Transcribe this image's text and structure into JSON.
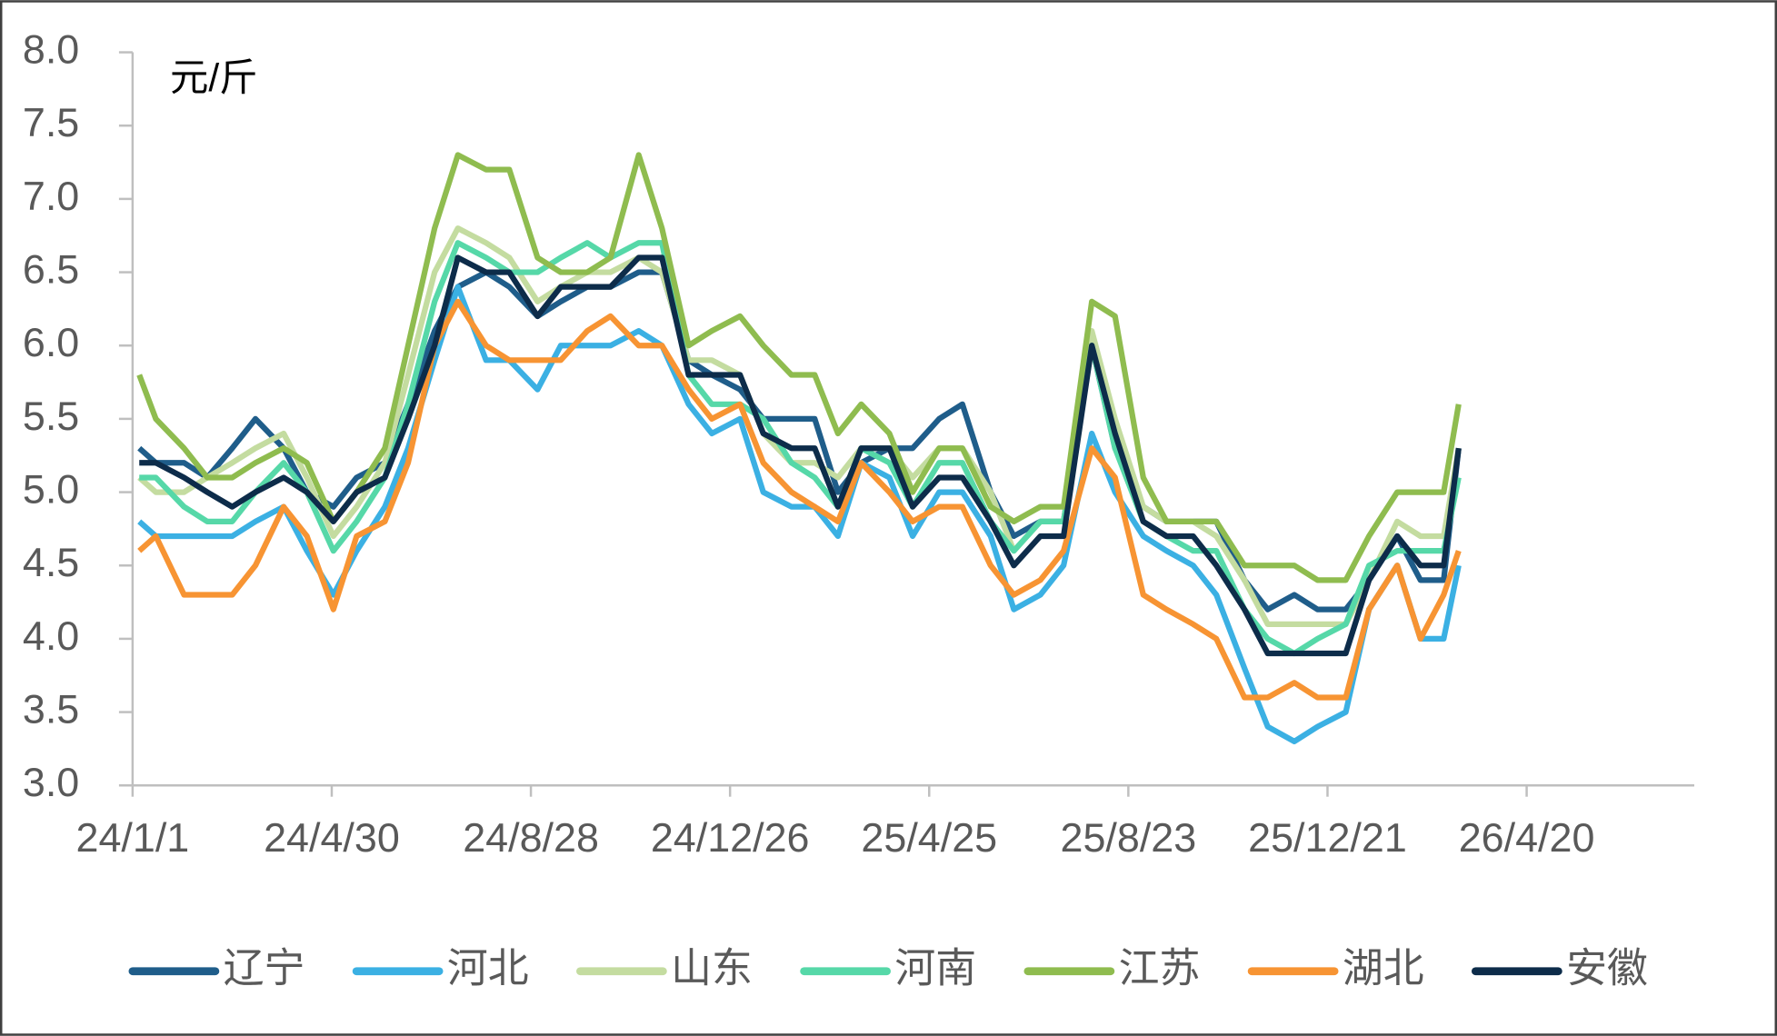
{
  "chart_data": {
    "type": "line",
    "y_unit": "元/斤",
    "x": [
      "24/1/5",
      "24/1/15",
      "24/2/1",
      "24/2/15",
      "24/3/1",
      "24/3/15",
      "24/4/1",
      "24/4/15",
      "24/5/1",
      "24/5/15",
      "24/6/1",
      "24/6/15",
      "24/7/1",
      "24/7/15",
      "24/8/1",
      "24/8/15",
      "24/9/1",
      "24/9/15",
      "24/10/1",
      "24/10/15",
      "24/11/1",
      "24/11/15",
      "24/12/1",
      "24/12/15",
      "25/1/1",
      "25/1/15",
      "25/2/1",
      "25/2/15",
      "25/3/1",
      "25/3/15",
      "25/4/1",
      "25/4/15",
      "25/5/1",
      "25/5/15",
      "25/6/1",
      "25/6/15",
      "25/7/1",
      "25/7/15",
      "25/8/1",
      "25/8/15",
      "25/9/1",
      "25/9/15",
      "25/10/1",
      "25/10/15",
      "25/11/1",
      "25/11/15",
      "25/12/1",
      "25/12/15",
      "26/1/1",
      "26/1/15",
      "26/2/1",
      "26/2/15",
      "26/3/1",
      "26/3/10"
    ],
    "series": [
      {
        "name": "辽宁",
        "color": "#1f5d8a",
        "values": [
          5.3,
          5.2,
          5.2,
          5.1,
          5.3,
          5.5,
          5.3,
          5.0,
          4.9,
          5.1,
          5.2,
          5.6,
          6.1,
          6.4,
          6.5,
          6.4,
          6.2,
          6.3,
          6.4,
          6.4,
          6.5,
          6.5,
          5.9,
          5.8,
          5.7,
          5.5,
          5.5,
          5.5,
          5.0,
          5.2,
          5.3,
          5.3,
          5.5,
          5.6,
          5.0,
          4.7,
          4.8,
          4.8,
          6.0,
          5.3,
          4.9,
          4.8,
          4.8,
          4.8,
          4.4,
          4.2,
          4.3,
          4.2,
          4.2,
          4.4,
          4.7,
          4.4,
          4.4,
          5.3
        ]
      },
      {
        "name": "河北",
        "color": "#3bb0e3",
        "values": [
          4.8,
          4.7,
          4.7,
          4.7,
          4.7,
          4.8,
          4.9,
          4.6,
          4.3,
          4.6,
          4.9,
          5.3,
          5.9,
          6.4,
          5.9,
          5.9,
          5.7,
          6.0,
          6.0,
          6.0,
          6.1,
          6.0,
          5.6,
          5.4,
          5.5,
          5.0,
          4.9,
          4.9,
          4.7,
          5.2,
          5.1,
          4.7,
          5.0,
          5.0,
          4.7,
          4.2,
          4.3,
          4.5,
          5.4,
          5.0,
          4.7,
          4.6,
          4.5,
          4.3,
          3.8,
          3.4,
          3.3,
          3.4,
          3.5,
          4.2,
          4.5,
          4.0,
          4.0,
          4.5
        ]
      },
      {
        "name": "山东",
        "color": "#c4dca0",
        "values": [
          5.1,
          5.0,
          5.0,
          5.1,
          5.2,
          5.3,
          5.4,
          5.1,
          4.7,
          4.9,
          5.2,
          5.8,
          6.5,
          6.8,
          6.7,
          6.6,
          6.3,
          6.4,
          6.5,
          6.5,
          6.6,
          6.5,
          5.9,
          5.9,
          5.8,
          5.4,
          5.2,
          5.2,
          5.1,
          5.3,
          5.3,
          5.1,
          5.3,
          5.3,
          5.0,
          4.6,
          4.8,
          4.8,
          6.1,
          5.5,
          4.9,
          4.8,
          4.8,
          4.7,
          4.4,
          4.1,
          4.1,
          4.1,
          4.1,
          4.4,
          4.8,
          4.7,
          4.7,
          5.3
        ]
      },
      {
        "name": "河南",
        "color": "#56d8a8",
        "values": [
          5.1,
          5.1,
          4.9,
          4.8,
          4.8,
          5.0,
          5.2,
          5.0,
          4.6,
          4.8,
          5.1,
          5.6,
          6.3,
          6.7,
          6.6,
          6.5,
          6.5,
          6.6,
          6.7,
          6.6,
          6.7,
          6.7,
          5.8,
          5.6,
          5.6,
          5.5,
          5.2,
          5.1,
          4.9,
          5.3,
          5.2,
          4.9,
          5.2,
          5.2,
          4.8,
          4.6,
          4.8,
          4.8,
          6.0,
          5.3,
          4.8,
          4.7,
          4.6,
          4.6,
          4.2,
          4.0,
          3.9,
          4.0,
          4.1,
          4.5,
          4.6,
          4.6,
          4.6,
          5.1
        ]
      },
      {
        "name": "江苏",
        "color": "#8fbc4f",
        "values": [
          5.8,
          5.5,
          5.3,
          5.1,
          5.1,
          5.2,
          5.3,
          5.2,
          4.8,
          5.0,
          5.3,
          6.0,
          6.8,
          7.3,
          7.2,
          7.2,
          6.6,
          6.5,
          6.5,
          6.6,
          7.3,
          6.8,
          6.0,
          6.1,
          6.2,
          6.0,
          5.8,
          5.8,
          5.4,
          5.6,
          5.4,
          5.0,
          5.3,
          5.3,
          4.9,
          4.8,
          4.9,
          4.9,
          6.3,
          6.2,
          5.1,
          4.8,
          4.8,
          4.8,
          4.5,
          4.5,
          4.5,
          4.4,
          4.4,
          4.7,
          5.0,
          5.0,
          5.0,
          5.6
        ]
      },
      {
        "name": "湖北",
        "color": "#f79433",
        "values": [
          4.6,
          4.7,
          4.3,
          4.3,
          4.3,
          4.5,
          4.9,
          4.7,
          4.2,
          4.7,
          4.8,
          5.2,
          6.0,
          6.3,
          6.0,
          5.9,
          5.9,
          5.9,
          6.1,
          6.2,
          6.0,
          6.0,
          5.7,
          5.5,
          5.6,
          5.2,
          5.0,
          4.9,
          4.8,
          5.2,
          5.0,
          4.8,
          4.9,
          4.9,
          4.5,
          4.3,
          4.4,
          4.6,
          5.3,
          5.1,
          4.3,
          4.2,
          4.1,
          4.0,
          3.6,
          3.6,
          3.7,
          3.6,
          3.6,
          4.2,
          4.5,
          4.0,
          4.3,
          4.6
        ]
      },
      {
        "name": "安徽",
        "color": "#0d2c4a",
        "values": [
          5.2,
          5.2,
          5.1,
          5.0,
          4.9,
          5.0,
          5.1,
          5.0,
          4.8,
          5.0,
          5.1,
          5.5,
          6.0,
          6.6,
          6.5,
          6.5,
          6.2,
          6.4,
          6.4,
          6.4,
          6.6,
          6.6,
          5.8,
          5.8,
          5.8,
          5.4,
          5.3,
          5.3,
          4.9,
          5.3,
          5.3,
          4.9,
          5.1,
          5.1,
          4.8,
          4.5,
          4.7,
          4.7,
          6.0,
          5.4,
          4.8,
          4.7,
          4.7,
          4.5,
          4.2,
          3.9,
          3.9,
          3.9,
          3.9,
          4.4,
          4.7,
          4.5,
          4.5,
          5.3
        ]
      }
    ],
    "xlim": [
      "24/1/1",
      "26/7/30"
    ],
    "xticks": [
      "24/1/1",
      "24/4/30",
      "24/8/28",
      "24/12/26",
      "25/4/25",
      "25/8/23",
      "25/12/21",
      "26/4/20"
    ],
    "ylim": [
      3,
      8
    ],
    "yticks": [
      {
        "value": 3,
        "label": "3.0"
      },
      3.5,
      {
        "value": 4,
        "label": "4.0"
      },
      4.5,
      {
        "value": 5,
        "label": "5.0"
      },
      5.5,
      {
        "value": 6,
        "label": "6.0"
      },
      6.5,
      {
        "value": 7,
        "label": "7.0"
      },
      7.5,
      {
        "value": 8,
        "label": "8.0"
      }
    ],
    "legend": "bottom",
    "grid": false
  }
}
